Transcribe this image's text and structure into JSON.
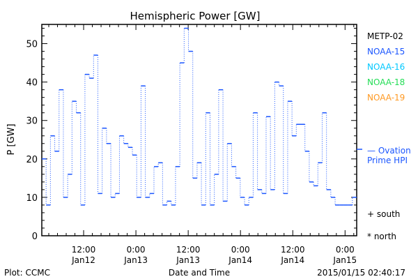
{
  "chart_data": {
    "type": "line",
    "title": "Hemispheric Power [GW]",
    "xlabel": "Date and Time",
    "ylabel": "P [GW]",
    "ylim": [
      0,
      55
    ],
    "xlim_hours_since_jan12_0000": [
      2.4,
      74.67
    ],
    "yticks": [
      0,
      10,
      20,
      30,
      40,
      50
    ],
    "xticks": [
      {
        "hours": 12,
        "time": "12:00",
        "date": "Jan12"
      },
      {
        "hours": 24,
        "time": "0:00",
        "date": "Jan13"
      },
      {
        "hours": 36,
        "time": "12:00",
        "date": "Jan13"
      },
      {
        "hours": 48,
        "time": "0:00",
        "date": "Jan14"
      },
      {
        "hours": 60,
        "time": "12:00",
        "date": "Jan14"
      },
      {
        "hours": 72,
        "time": "0:00",
        "date": "Jan15"
      }
    ],
    "series": [
      {
        "name": "NOAA-15",
        "color": "#1a55ff",
        "step": true,
        "values": [
          20,
          8,
          26,
          22,
          38,
          10,
          16,
          35,
          32,
          8,
          42,
          41,
          47,
          11,
          28,
          24,
          10,
          11,
          26,
          24,
          23,
          21,
          10,
          39,
          10,
          11,
          18,
          19,
          8,
          9,
          8,
          18,
          45,
          54,
          48,
          15,
          19,
          8,
          32,
          8,
          16,
          38,
          9,
          24,
          18,
          15,
          10,
          8,
          10,
          32,
          12,
          11,
          31,
          12,
          40,
          39,
          11,
          35,
          26,
          29,
          29,
          22,
          14,
          13,
          19,
          32,
          12,
          10,
          8,
          8,
          8,
          8,
          10
        ]
      }
    ],
    "ovation": {
      "label_line1": "— Ovation",
      "label_line2": "Prime HPI",
      "value": 22.5,
      "color": "#1a55ff"
    },
    "legend": [
      {
        "name": "METP-02",
        "color": "#000000"
      },
      {
        "name": "NOAA-15",
        "color": "#1a55ff"
      },
      {
        "name": "NOAA-16",
        "color": "#00c8ff"
      },
      {
        "name": "NOAA-18",
        "color": "#22dd55"
      },
      {
        "name": "NOAA-19",
        "color": "#ff9922"
      }
    ],
    "hemisphere_legend": [
      "+ south",
      "* north"
    ],
    "footer": {
      "left": "Plot: CCMC",
      "right": "2015/01/15 02:40:17"
    }
  }
}
